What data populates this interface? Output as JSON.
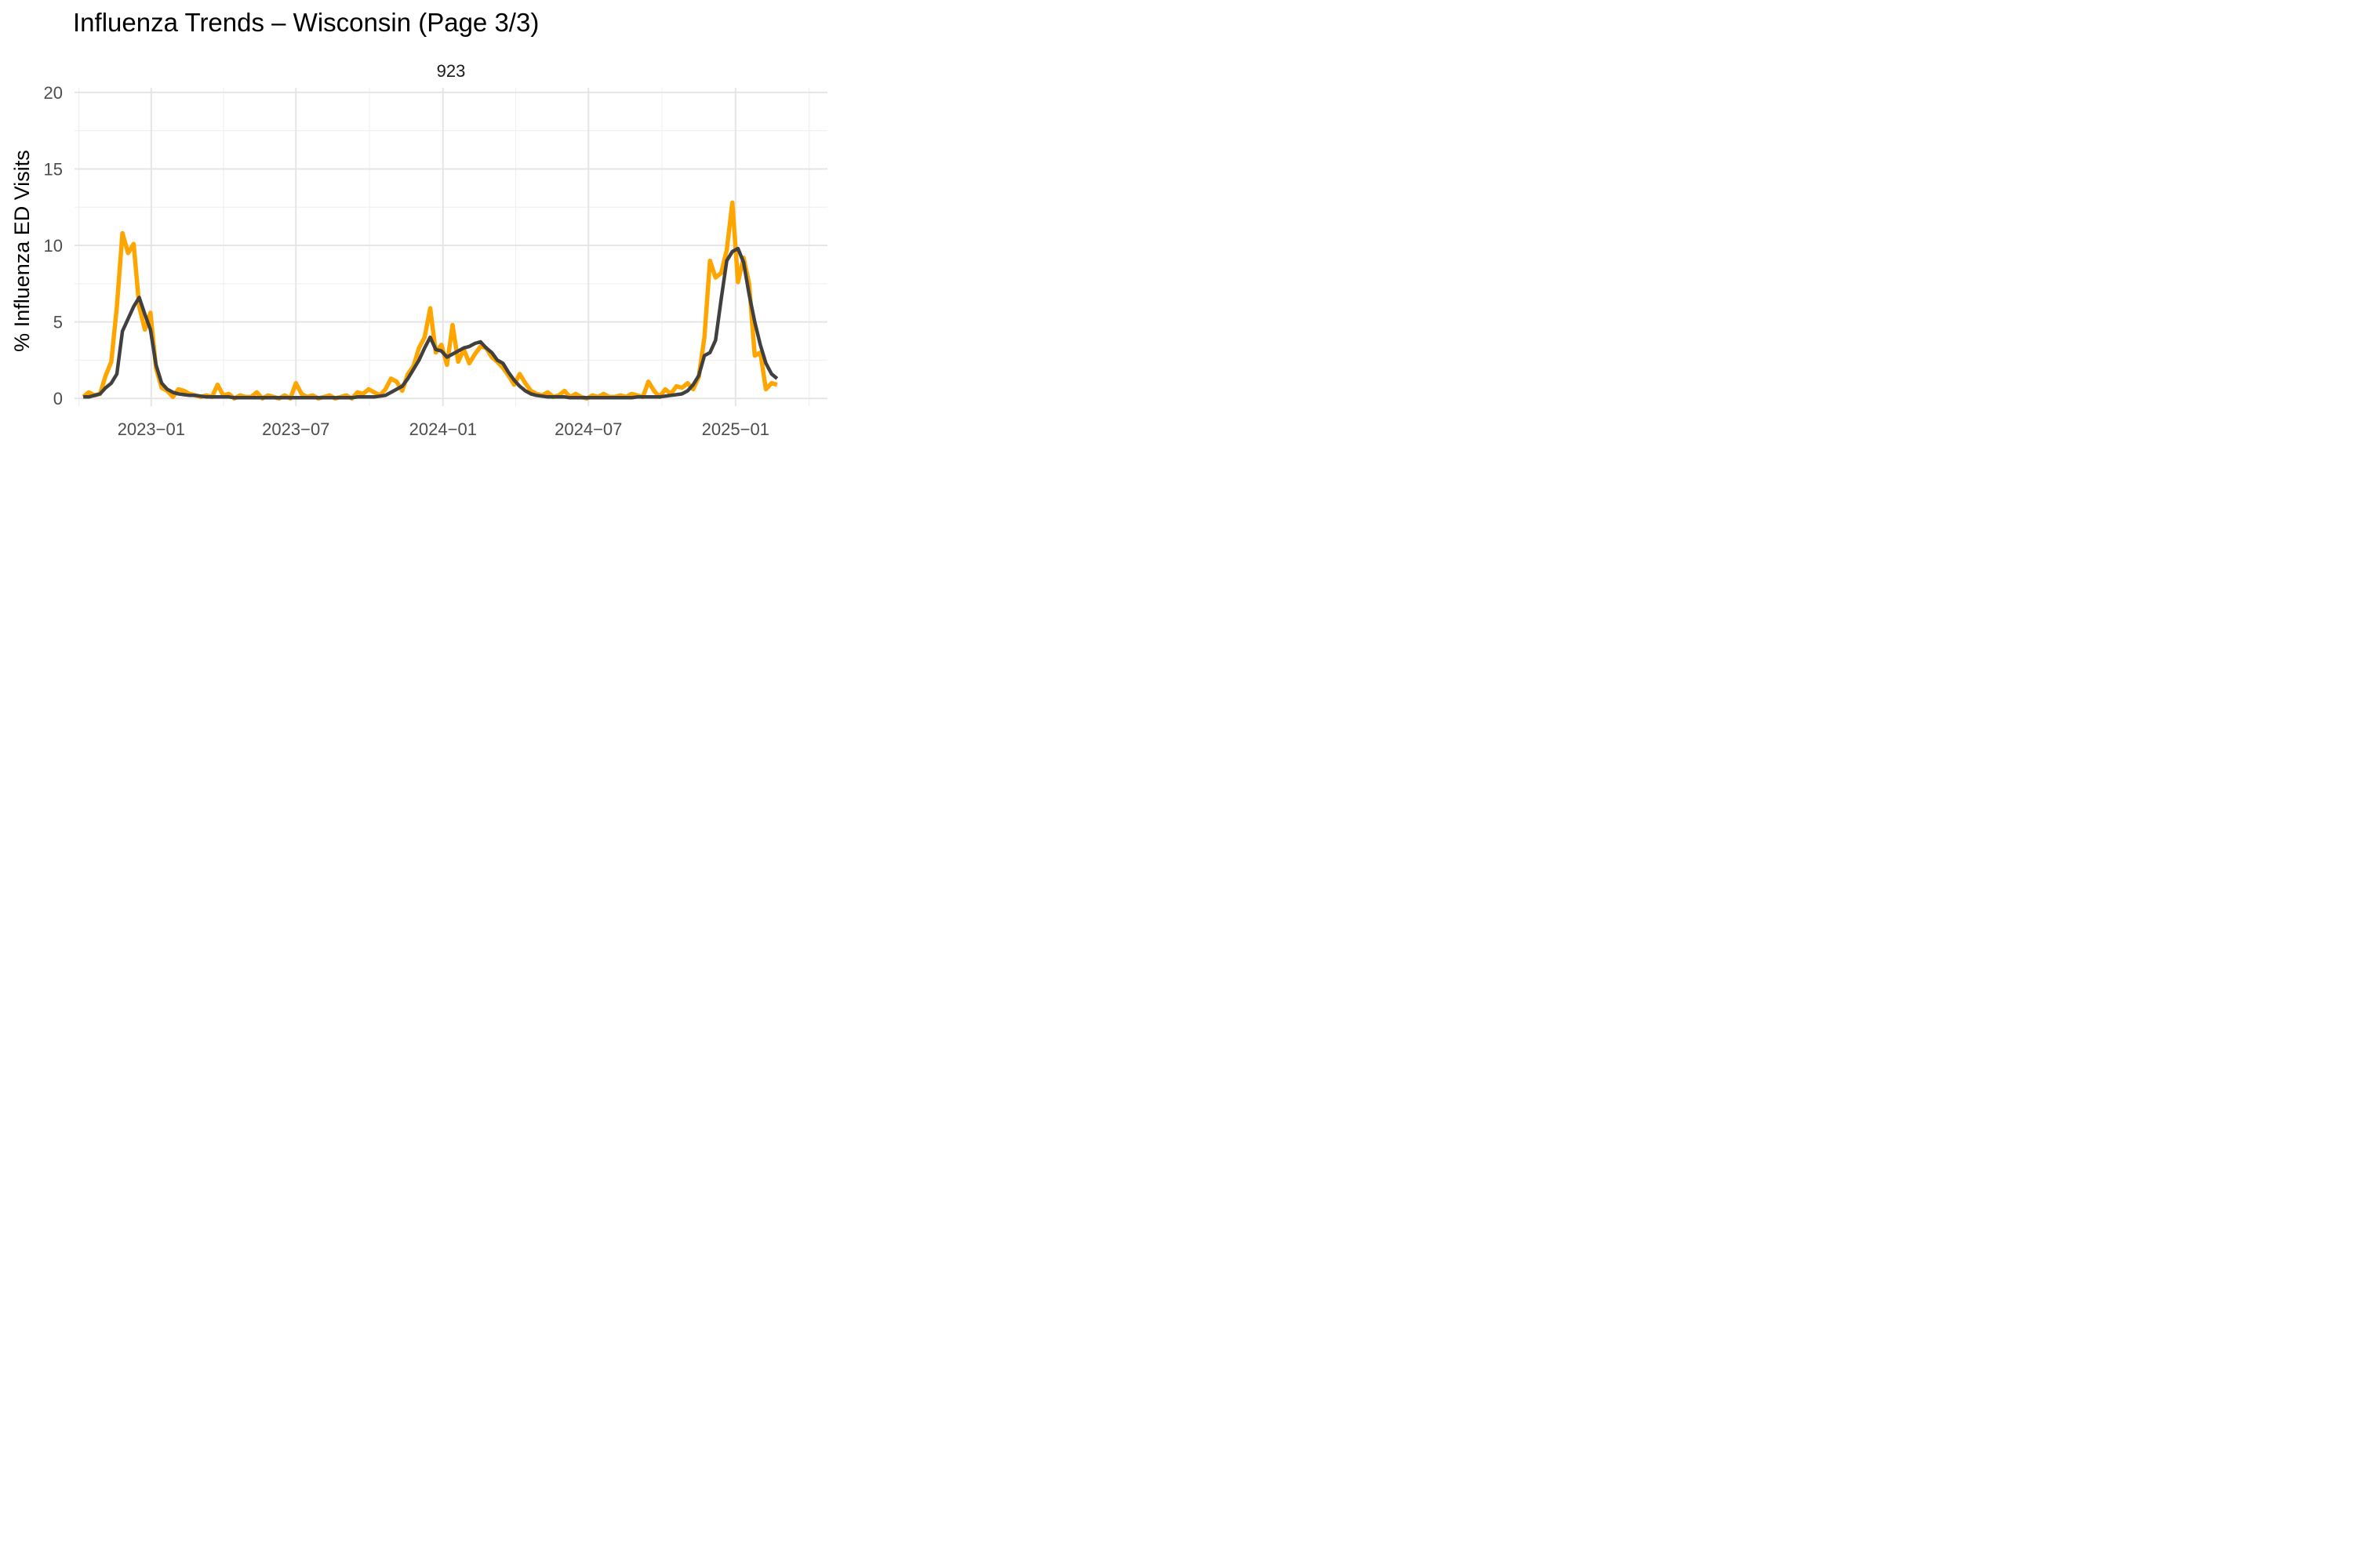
{
  "chart_data": {
    "type": "line",
    "title": "Influenza Trends – Wisconsin (Page 3/3)",
    "facet_label": "923",
    "xlabel": "",
    "ylabel": "% Influenza ED Visits",
    "x_tick_labels": [
      "2023−01",
      "2023−07",
      "2024−01",
      "2024−07",
      "2025−01"
    ],
    "x_tick_dates": [
      "2023-01-01",
      "2023-07-01",
      "2024-01-01",
      "2024-07-01",
      "2025-01-01"
    ],
    "xlim": [
      "2022-09-27",
      "2025-04-26"
    ],
    "y_ticks": [
      0,
      5,
      10,
      15,
      20
    ],
    "ylim": [
      -0.5,
      20.3
    ],
    "grid": true,
    "legend": "none",
    "series": [
      {
        "color": "#FFA500",
        "points": [
          [
            "2022-10-08",
            0.1
          ],
          [
            "2022-10-15",
            0.4
          ],
          [
            "2022-10-22",
            0.2
          ],
          [
            "2022-10-29",
            0.3
          ],
          [
            "2022-11-05",
            1.5
          ],
          [
            "2022-11-12",
            2.4
          ],
          [
            "2022-11-19",
            6.0
          ],
          [
            "2022-11-26",
            10.8
          ],
          [
            "2022-12-03",
            9.5
          ],
          [
            "2022-12-10",
            10.1
          ],
          [
            "2022-12-17",
            6.0
          ],
          [
            "2022-12-24",
            4.5
          ],
          [
            "2022-12-31",
            5.6
          ],
          [
            "2023-01-07",
            2.0
          ],
          [
            "2023-01-14",
            0.7
          ],
          [
            "2023-01-21",
            0.5
          ],
          [
            "2023-01-28",
            0.1
          ],
          [
            "2023-02-04",
            0.6
          ],
          [
            "2023-02-11",
            0.5
          ],
          [
            "2023-02-18",
            0.3
          ],
          [
            "2023-02-25",
            0.2
          ],
          [
            "2023-03-04",
            0.1
          ],
          [
            "2023-03-11",
            0.2
          ],
          [
            "2023-03-18",
            0.1
          ],
          [
            "2023-03-25",
            0.9
          ],
          [
            "2023-04-01",
            0.2
          ],
          [
            "2023-04-08",
            0.3
          ],
          [
            "2023-04-15",
            0.0
          ],
          [
            "2023-04-22",
            0.2
          ],
          [
            "2023-04-29",
            0.1
          ],
          [
            "2023-05-06",
            0.1
          ],
          [
            "2023-05-13",
            0.4
          ],
          [
            "2023-05-20",
            0.0
          ],
          [
            "2023-05-27",
            0.2
          ],
          [
            "2023-06-03",
            0.1
          ],
          [
            "2023-06-10",
            0.0
          ],
          [
            "2023-06-17",
            0.2
          ],
          [
            "2023-06-24",
            0.0
          ],
          [
            "2023-07-01",
            1.0
          ],
          [
            "2023-07-08",
            0.3
          ],
          [
            "2023-07-15",
            0.1
          ],
          [
            "2023-07-22",
            0.2
          ],
          [
            "2023-07-29",
            0.0
          ],
          [
            "2023-08-05",
            0.1
          ],
          [
            "2023-08-12",
            0.2
          ],
          [
            "2023-08-19",
            0.0
          ],
          [
            "2023-08-26",
            0.1
          ],
          [
            "2023-09-02",
            0.2
          ],
          [
            "2023-09-09",
            0.0
          ],
          [
            "2023-09-16",
            0.4
          ],
          [
            "2023-09-23",
            0.3
          ],
          [
            "2023-09-30",
            0.6
          ],
          [
            "2023-10-07",
            0.4
          ],
          [
            "2023-10-14",
            0.2
          ],
          [
            "2023-10-21",
            0.6
          ],
          [
            "2023-10-28",
            1.3
          ],
          [
            "2023-11-04",
            1.1
          ],
          [
            "2023-11-11",
            0.5
          ],
          [
            "2023-11-18",
            1.6
          ],
          [
            "2023-11-25",
            2.1
          ],
          [
            "2023-12-02",
            3.3
          ],
          [
            "2023-12-09",
            4.0
          ],
          [
            "2023-12-16",
            5.9
          ],
          [
            "2023-12-23",
            3.0
          ],
          [
            "2023-12-30",
            3.5
          ],
          [
            "2024-01-06",
            2.2
          ],
          [
            "2024-01-13",
            4.8
          ],
          [
            "2024-01-20",
            2.4
          ],
          [
            "2024-01-27",
            3.2
          ],
          [
            "2024-02-03",
            2.3
          ],
          [
            "2024-02-10",
            2.9
          ],
          [
            "2024-02-17",
            3.4
          ],
          [
            "2024-02-24",
            3.3
          ],
          [
            "2024-03-02",
            2.7
          ],
          [
            "2024-03-09",
            2.4
          ],
          [
            "2024-03-16",
            2.0
          ],
          [
            "2024-03-23",
            1.5
          ],
          [
            "2024-03-30",
            0.9
          ],
          [
            "2024-04-06",
            1.6
          ],
          [
            "2024-04-13",
            1.0
          ],
          [
            "2024-04-20",
            0.5
          ],
          [
            "2024-04-27",
            0.3
          ],
          [
            "2024-05-04",
            0.2
          ],
          [
            "2024-05-11",
            0.4
          ],
          [
            "2024-05-18",
            0.1
          ],
          [
            "2024-05-25",
            0.2
          ],
          [
            "2024-06-01",
            0.5
          ],
          [
            "2024-06-08",
            0.1
          ],
          [
            "2024-06-15",
            0.3
          ],
          [
            "2024-06-22",
            0.1
          ],
          [
            "2024-06-29",
            0.0
          ],
          [
            "2024-07-06",
            0.2
          ],
          [
            "2024-07-13",
            0.1
          ],
          [
            "2024-07-20",
            0.3
          ],
          [
            "2024-07-27",
            0.1
          ],
          [
            "2024-08-03",
            0.1
          ],
          [
            "2024-08-10",
            0.2
          ],
          [
            "2024-08-17",
            0.1
          ],
          [
            "2024-08-24",
            0.3
          ],
          [
            "2024-08-31",
            0.2
          ],
          [
            "2024-09-07",
            0.1
          ],
          [
            "2024-09-14",
            1.1
          ],
          [
            "2024-09-21",
            0.5
          ],
          [
            "2024-09-28",
            0.1
          ],
          [
            "2024-10-05",
            0.6
          ],
          [
            "2024-10-12",
            0.3
          ],
          [
            "2024-10-19",
            0.8
          ],
          [
            "2024-10-26",
            0.7
          ],
          [
            "2024-11-02",
            1.0
          ],
          [
            "2024-11-09",
            0.6
          ],
          [
            "2024-11-16",
            1.4
          ],
          [
            "2024-11-23",
            4.0
          ],
          [
            "2024-11-30",
            9.0
          ],
          [
            "2024-12-07",
            7.9
          ],
          [
            "2024-12-14",
            8.2
          ],
          [
            "2024-12-21",
            9.7
          ],
          [
            "2024-12-28",
            12.8
          ],
          [
            "2025-01-04",
            7.6
          ],
          [
            "2025-01-11",
            9.2
          ],
          [
            "2025-01-18",
            7.5
          ],
          [
            "2025-01-25",
            2.8
          ],
          [
            "2025-02-01",
            3.0
          ],
          [
            "2025-02-08",
            0.6
          ],
          [
            "2025-02-15",
            1.0
          ],
          [
            "2025-02-22",
            0.9
          ]
        ]
      },
      {
        "color": "#404040",
        "points": [
          [
            "2022-10-08",
            0.1
          ],
          [
            "2022-10-15",
            0.1
          ],
          [
            "2022-10-22",
            0.2
          ],
          [
            "2022-10-29",
            0.3
          ],
          [
            "2022-11-05",
            0.7
          ],
          [
            "2022-11-12",
            1.0
          ],
          [
            "2022-11-19",
            1.6
          ],
          [
            "2022-11-26",
            4.4
          ],
          [
            "2022-12-03",
            5.2
          ],
          [
            "2022-12-10",
            6.0
          ],
          [
            "2022-12-17",
            6.6
          ],
          [
            "2022-12-24",
            5.5
          ],
          [
            "2022-12-31",
            4.5
          ],
          [
            "2023-01-07",
            2.2
          ],
          [
            "2023-01-14",
            1.0
          ],
          [
            "2023-01-21",
            0.6
          ],
          [
            "2023-01-28",
            0.4
          ],
          [
            "2023-02-04",
            0.3
          ],
          [
            "2023-02-11",
            0.25
          ],
          [
            "2023-02-18",
            0.2
          ],
          [
            "2023-02-25",
            0.2
          ],
          [
            "2023-03-04",
            0.15
          ],
          [
            "2023-03-11",
            0.1
          ],
          [
            "2023-03-18",
            0.1
          ],
          [
            "2023-03-25",
            0.1
          ],
          [
            "2023-04-01",
            0.1
          ],
          [
            "2023-04-08",
            0.1
          ],
          [
            "2023-04-15",
            0.05
          ],
          [
            "2023-04-22",
            0.05
          ],
          [
            "2023-04-29",
            0.05
          ],
          [
            "2023-05-06",
            0.05
          ],
          [
            "2023-05-13",
            0.05
          ],
          [
            "2023-05-20",
            0.05
          ],
          [
            "2023-05-27",
            0.05
          ],
          [
            "2023-06-03",
            0.05
          ],
          [
            "2023-06-10",
            0.05
          ],
          [
            "2023-06-17",
            0.05
          ],
          [
            "2023-06-24",
            0.05
          ],
          [
            "2023-07-01",
            0.05
          ],
          [
            "2023-07-08",
            0.05
          ],
          [
            "2023-07-15",
            0.05
          ],
          [
            "2023-07-22",
            0.05
          ],
          [
            "2023-07-29",
            0.05
          ],
          [
            "2023-08-05",
            0.05
          ],
          [
            "2023-08-12",
            0.05
          ],
          [
            "2023-08-19",
            0.05
          ],
          [
            "2023-08-26",
            0.05
          ],
          [
            "2023-09-02",
            0.05
          ],
          [
            "2023-09-09",
            0.05
          ],
          [
            "2023-09-16",
            0.1
          ],
          [
            "2023-09-23",
            0.1
          ],
          [
            "2023-09-30",
            0.1
          ],
          [
            "2023-10-07",
            0.1
          ],
          [
            "2023-10-14",
            0.15
          ],
          [
            "2023-10-21",
            0.2
          ],
          [
            "2023-10-28",
            0.4
          ],
          [
            "2023-11-04",
            0.6
          ],
          [
            "2023-11-11",
            0.8
          ],
          [
            "2023-11-18",
            1.3
          ],
          [
            "2023-11-25",
            1.9
          ],
          [
            "2023-12-02",
            2.5
          ],
          [
            "2023-12-09",
            3.3
          ],
          [
            "2023-12-16",
            4.0
          ],
          [
            "2023-12-23",
            3.2
          ],
          [
            "2023-12-30",
            3.1
          ],
          [
            "2024-01-06",
            2.7
          ],
          [
            "2024-01-13",
            2.9
          ],
          [
            "2024-01-20",
            3.1
          ],
          [
            "2024-01-27",
            3.3
          ],
          [
            "2024-02-03",
            3.4
          ],
          [
            "2024-02-10",
            3.6
          ],
          [
            "2024-02-17",
            3.7
          ],
          [
            "2024-02-24",
            3.3
          ],
          [
            "2024-03-02",
            3.0
          ],
          [
            "2024-03-09",
            2.5
          ],
          [
            "2024-03-16",
            2.3
          ],
          [
            "2024-03-23",
            1.7
          ],
          [
            "2024-03-30",
            1.2
          ],
          [
            "2024-04-06",
            0.8
          ],
          [
            "2024-04-13",
            0.5
          ],
          [
            "2024-04-20",
            0.3
          ],
          [
            "2024-04-27",
            0.2
          ],
          [
            "2024-05-04",
            0.15
          ],
          [
            "2024-05-11",
            0.1
          ],
          [
            "2024-05-18",
            0.1
          ],
          [
            "2024-05-25",
            0.1
          ],
          [
            "2024-06-01",
            0.1
          ],
          [
            "2024-06-08",
            0.05
          ],
          [
            "2024-06-15",
            0.05
          ],
          [
            "2024-06-22",
            0.05
          ],
          [
            "2024-06-29",
            0.05
          ],
          [
            "2024-07-06",
            0.05
          ],
          [
            "2024-07-13",
            0.05
          ],
          [
            "2024-07-20",
            0.05
          ],
          [
            "2024-07-27",
            0.05
          ],
          [
            "2024-08-03",
            0.05
          ],
          [
            "2024-08-10",
            0.05
          ],
          [
            "2024-08-17",
            0.05
          ],
          [
            "2024-08-24",
            0.05
          ],
          [
            "2024-08-31",
            0.1
          ],
          [
            "2024-09-07",
            0.1
          ],
          [
            "2024-09-14",
            0.1
          ],
          [
            "2024-09-21",
            0.1
          ],
          [
            "2024-09-28",
            0.1
          ],
          [
            "2024-10-05",
            0.15
          ],
          [
            "2024-10-12",
            0.2
          ],
          [
            "2024-10-19",
            0.25
          ],
          [
            "2024-10-26",
            0.3
          ],
          [
            "2024-11-02",
            0.5
          ],
          [
            "2024-11-09",
            0.9
          ],
          [
            "2024-11-16",
            1.5
          ],
          [
            "2024-11-23",
            2.8
          ],
          [
            "2024-11-30",
            3.0
          ],
          [
            "2024-12-07",
            3.8
          ],
          [
            "2024-12-14",
            6.5
          ],
          [
            "2024-12-21",
            9.0
          ],
          [
            "2024-12-28",
            9.6
          ],
          [
            "2025-01-04",
            9.8
          ],
          [
            "2025-01-11",
            8.9
          ],
          [
            "2025-01-18",
            6.8
          ],
          [
            "2025-01-25",
            5.0
          ],
          [
            "2025-02-01",
            3.5
          ],
          [
            "2025-02-08",
            2.3
          ],
          [
            "2025-02-15",
            1.6
          ],
          [
            "2025-02-22",
            1.3
          ]
        ]
      }
    ]
  }
}
